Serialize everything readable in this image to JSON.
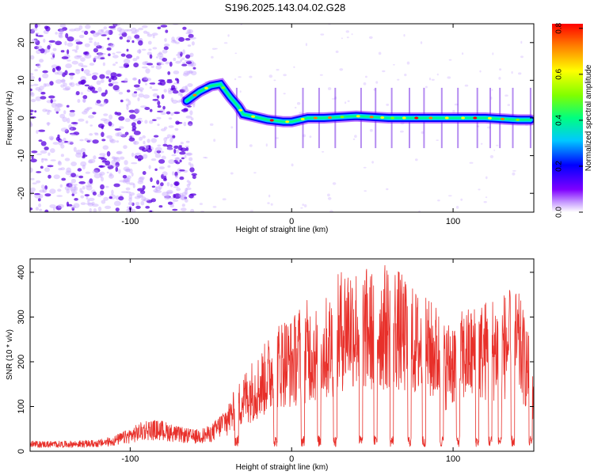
{
  "title": "S196.2025.143.04.02.G28",
  "colors": {
    "line": "#e8302a",
    "axis": "#000000",
    "track_core": "#00c8ff",
    "noise_dark": "#5a00e0",
    "noise_light": "#c8a8ff"
  },
  "chart_data": [
    {
      "type": "heatmap",
      "xlabel": "Height of straight line (km)",
      "ylabel": "Frequency (Hz)",
      "xlim": [
        -162,
        150
      ],
      "ylim": [
        -25,
        25
      ],
      "xticks": [
        -100,
        0,
        100
      ],
      "xtick_labels": [
        "-100",
        "0",
        "100"
      ],
      "yticks": [
        -20,
        -10,
        0,
        10,
        20
      ],
      "ytick_labels": [
        "-20",
        "-10",
        "0",
        "10",
        "20"
      ],
      "colormap": "rainbow",
      "colorbar": {
        "label": "Normalized spectral amplitude",
        "range": [
          0,
          0.82
        ],
        "ticks": [
          0,
          0.2,
          0.4,
          0.6,
          0.8
        ],
        "tick_labels": [
          "0.0",
          "0.2",
          "0.4",
          "0.6",
          "0.8"
        ]
      },
      "ridge": {
        "points": [
          [
            -65,
            4.5
          ],
          [
            -57,
            7
          ],
          [
            -50,
            8.5
          ],
          [
            -44,
            9
          ],
          [
            -38,
            5.5
          ],
          [
            -33,
            3
          ],
          [
            -30,
            1
          ],
          [
            -25,
            0.5
          ],
          [
            -15,
            -0.5
          ],
          [
            -5,
            -1
          ],
          [
            0,
            -1
          ],
          [
            10,
            0
          ],
          [
            20,
            0
          ],
          [
            40,
            0.5
          ],
          [
            60,
            0
          ],
          [
            80,
            0
          ],
          [
            100,
            0
          ],
          [
            120,
            0
          ],
          [
            140,
            -0.5
          ],
          [
            148,
            -0.5
          ]
        ]
      },
      "noise_region": [
        -162,
        -60
      ]
    },
    {
      "type": "line",
      "xlabel": "Height of straight line (km)",
      "ylabel": "SNR (10 * v/v)",
      "xlim": [
        -162,
        150
      ],
      "ylim": [
        0,
        430
      ],
      "xticks": [
        -100,
        0,
        100
      ],
      "xtick_labels": [
        "-100",
        "0",
        "100"
      ],
      "yticks": [
        0,
        100,
        200,
        300,
        400
      ],
      "ytick_labels": [
        "0",
        "100",
        "200",
        "300",
        "400"
      ],
      "envelope": [
        [
          -162,
          20
        ],
        [
          -140,
          20
        ],
        [
          -120,
          22
        ],
        [
          -110,
          30
        ],
        [
          -100,
          45
        ],
        [
          -90,
          62
        ],
        [
          -80,
          60
        ],
        [
          -70,
          48
        ],
        [
          -60,
          42
        ],
        [
          -50,
          50
        ],
        [
          -45,
          70
        ],
        [
          -40,
          95
        ],
        [
          -30,
          160
        ],
        [
          -25,
          185
        ],
        [
          -20,
          200
        ],
        [
          -15,
          230
        ],
        [
          -10,
          255
        ],
        [
          -5,
          280
        ],
        [
          0,
          270
        ],
        [
          5,
          300
        ],
        [
          10,
          310
        ],
        [
          15,
          300
        ],
        [
          20,
          310
        ],
        [
          25,
          330
        ],
        [
          30,
          370
        ],
        [
          35,
          395
        ],
        [
          40,
          380
        ],
        [
          50,
          370
        ],
        [
          60,
          385
        ],
        [
          65,
          380
        ],
        [
          70,
          350
        ],
        [
          80,
          320
        ],
        [
          90,
          300
        ],
        [
          95,
          260
        ],
        [
          100,
          280
        ],
        [
          110,
          295
        ],
        [
          120,
          310
        ],
        [
          130,
          325
        ],
        [
          140,
          330
        ],
        [
          145,
          270
        ],
        [
          150,
          180
        ]
      ],
      "dropouts": [
        -34,
        -10,
        7,
        17,
        27,
        43,
        52,
        62,
        73,
        82,
        93,
        103,
        115,
        123,
        129,
        137,
        148
      ]
    }
  ]
}
